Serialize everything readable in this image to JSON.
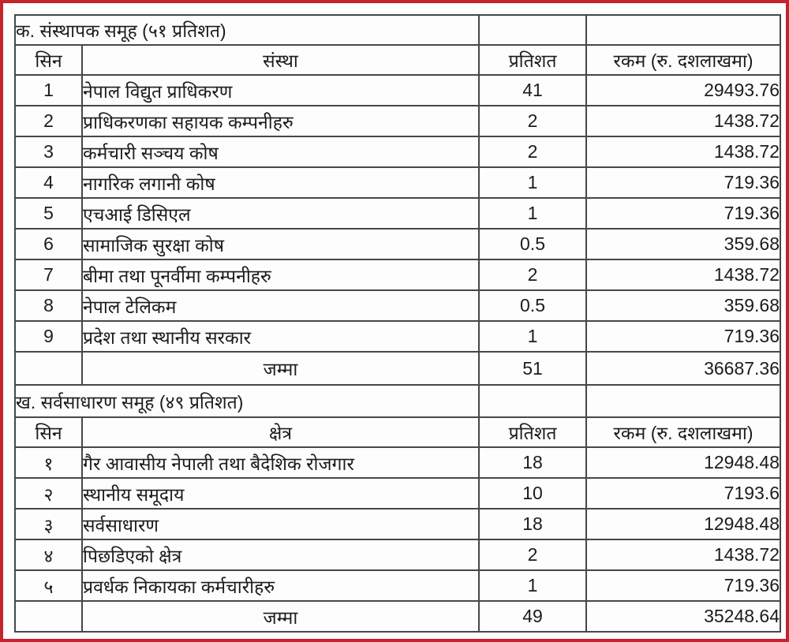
{
  "frame": {
    "outer_border_color": "#c4242b",
    "grid_border_color": "#474747",
    "background": "#fefefe"
  },
  "section_a": {
    "title": "क.  संस्थापक समूह  (५१ प्रतिशत)",
    "headers": {
      "sn": "सिन",
      "name": "संस्था",
      "percent": "प्रतिशत",
      "amount": "रकम  (रु. दशलाखमा)"
    },
    "rows": [
      {
        "sn": "1",
        "name": "नेपाल विद्युत प्राधिकरण",
        "percent": "41",
        "amount": "29493.76"
      },
      {
        "sn": "2",
        "name": "प्राधिकरणका सहायक कम्पनीहरु",
        "percent": "2",
        "amount": "1438.72"
      },
      {
        "sn": "3",
        "name": "कर्मचारी सञ्चय कोष",
        "percent": "2",
        "amount": "1438.72"
      },
      {
        "sn": "4",
        "name": "नागरिक लगानी कोष",
        "percent": "1",
        "amount": "719.36"
      },
      {
        "sn": "5",
        "name": "एचआई डिसिएल",
        "percent": "1",
        "amount": "719.36"
      },
      {
        "sn": "6",
        "name": "सामाजिक सुरक्षा कोष",
        "percent": "0.5",
        "amount": "359.68"
      },
      {
        "sn": "7",
        "name": "बीमा तथा पूनर्वीमा कम्पनीहरु",
        "percent": "2",
        "amount": "1438.72"
      },
      {
        "sn": "8",
        "name": "नेपाल टेलिकम",
        "percent": "0.5",
        "amount": "359.68"
      },
      {
        "sn": "9",
        "name": "प्रदेश तथा स्थानीय सरकार",
        "percent": "1",
        "amount": "719.36"
      }
    ],
    "total": {
      "label": "जम्मा",
      "percent": "51",
      "amount": "36687.36"
    }
  },
  "section_b": {
    "title": "ख.  सर्वसाधारण समूह  (४९ प्रतिशत)",
    "headers": {
      "sn": "सिन",
      "name": "क्षेत्र",
      "percent": "प्रतिशत",
      "amount": "रकम  (रु. दशलाखमा)"
    },
    "rows": [
      {
        "sn": "१",
        "name": "गैर आवासीय नेपाली तथा बैदेशिक रोजगार",
        "percent": "18",
        "amount": "12948.48"
      },
      {
        "sn": "२",
        "name": "स्थानीय समूदाय",
        "percent": "10",
        "amount": "7193.6"
      },
      {
        "sn": "३",
        "name": "सर्वसाधारण",
        "percent": "18",
        "amount": "12948.48"
      },
      {
        "sn": "४",
        "name": "पिछडिएको क्षेत्र",
        "percent": "2",
        "amount": "1438.72"
      },
      {
        "sn": "५",
        "name": "प्रवर्धक निकायका कर्मचारीहरु",
        "percent": "1",
        "amount": "719.36"
      }
    ],
    "total": {
      "label": "जम्मा",
      "percent": "49",
      "amount": "35248.64"
    }
  }
}
